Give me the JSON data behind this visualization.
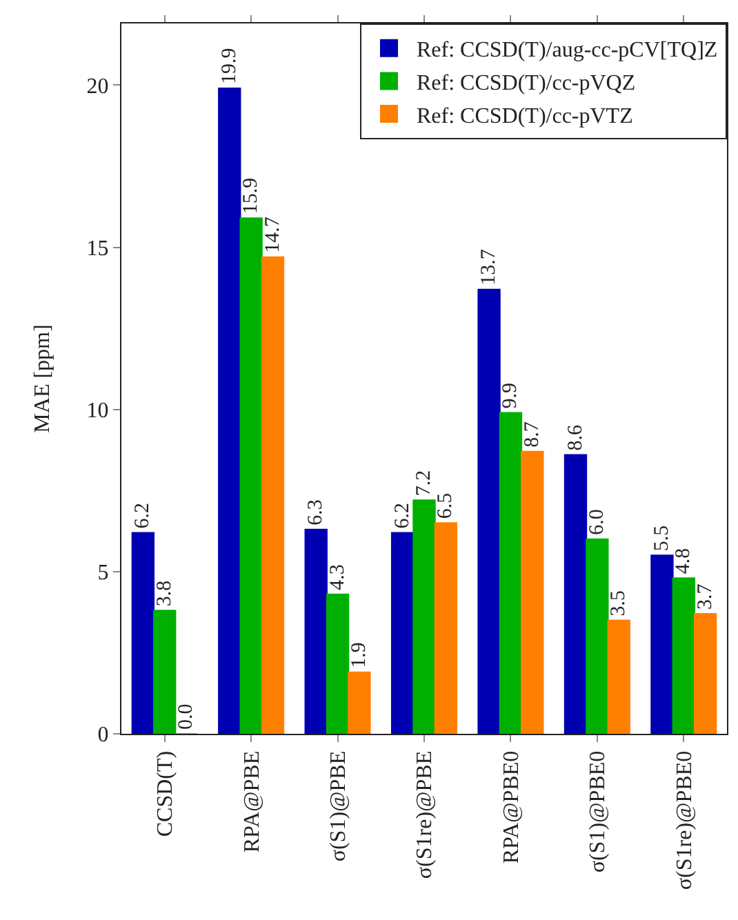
{
  "chart_data": {
    "type": "bar",
    "ylabel": "MAE [ppm]",
    "categories": [
      "CCSD(T)",
      "RPA@PBE",
      "σ(S1)@PBE",
      "σ(S1re)@PBE",
      "RPA@PBE0",
      "σ(S1)@PBE0",
      "σ(S1re)@PBE0"
    ],
    "series": [
      {
        "name": "Ref: CCSD(T)/aug-cc-pCV[TQ]Z",
        "color": "#0000b3",
        "values": [
          6.2,
          19.9,
          6.3,
          6.2,
          13.7,
          8.6,
          5.5
        ],
        "value_labels": [
          "6.2",
          "19.9",
          "6.3",
          "6.2",
          "13.7",
          "8.6",
          "5.5"
        ]
      },
      {
        "name": "Ref: CCSD(T)/cc-pVQZ",
        "color": "#00b000",
        "values": [
          3.8,
          15.9,
          4.3,
          7.2,
          9.9,
          6.0,
          4.8
        ],
        "value_labels": [
          "3.8",
          "15.9",
          "4.3",
          "7.2",
          "9.9",
          "6.0",
          "4.8"
        ]
      },
      {
        "name": "Ref: CCSD(T)/cc-pVTZ",
        "color": "#ff8000",
        "values": [
          0.0,
          14.7,
          1.9,
          6.5,
          8.7,
          3.5,
          3.7
        ],
        "value_labels": [
          "0.0",
          "14.7",
          "1.9",
          "6.5",
          "8.7",
          "3.5",
          "3.7"
        ]
      }
    ],
    "ylim": [
      0,
      21.9
    ],
    "yticks": [
      0,
      5,
      10,
      15,
      20
    ],
    "legend": "top right"
  }
}
